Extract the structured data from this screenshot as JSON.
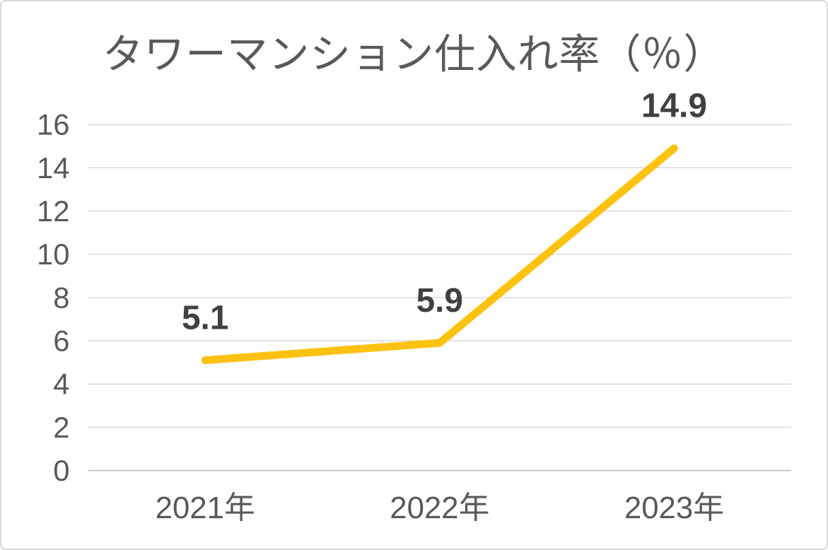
{
  "chart_data": {
    "type": "line",
    "title": "タワーマンション仕入れ率（％）",
    "categories": [
      "2021年",
      "2022年",
      "2023年"
    ],
    "series": [
      {
        "name": "タワーマンション仕入れ率",
        "values": [
          5.1,
          5.9,
          14.9
        ]
      }
    ],
    "data_labels": [
      "5.1",
      "5.9",
      "14.9"
    ],
    "xlabel": "",
    "ylabel": "",
    "ylim": [
      0,
      16
    ],
    "yticks": [
      0,
      2,
      4,
      6,
      8,
      10,
      12,
      14,
      16
    ],
    "grid": "horizontal",
    "legend": "none",
    "colors": {
      "line": "#FDC110",
      "gridline": "#D9D9D9",
      "axis_line": "#C9C9C9",
      "title_text": "#595959",
      "tick_text": "#595959",
      "data_label_text": "#404040",
      "card_border": "#D8D8D8",
      "background": "#FFFFFF"
    }
  }
}
